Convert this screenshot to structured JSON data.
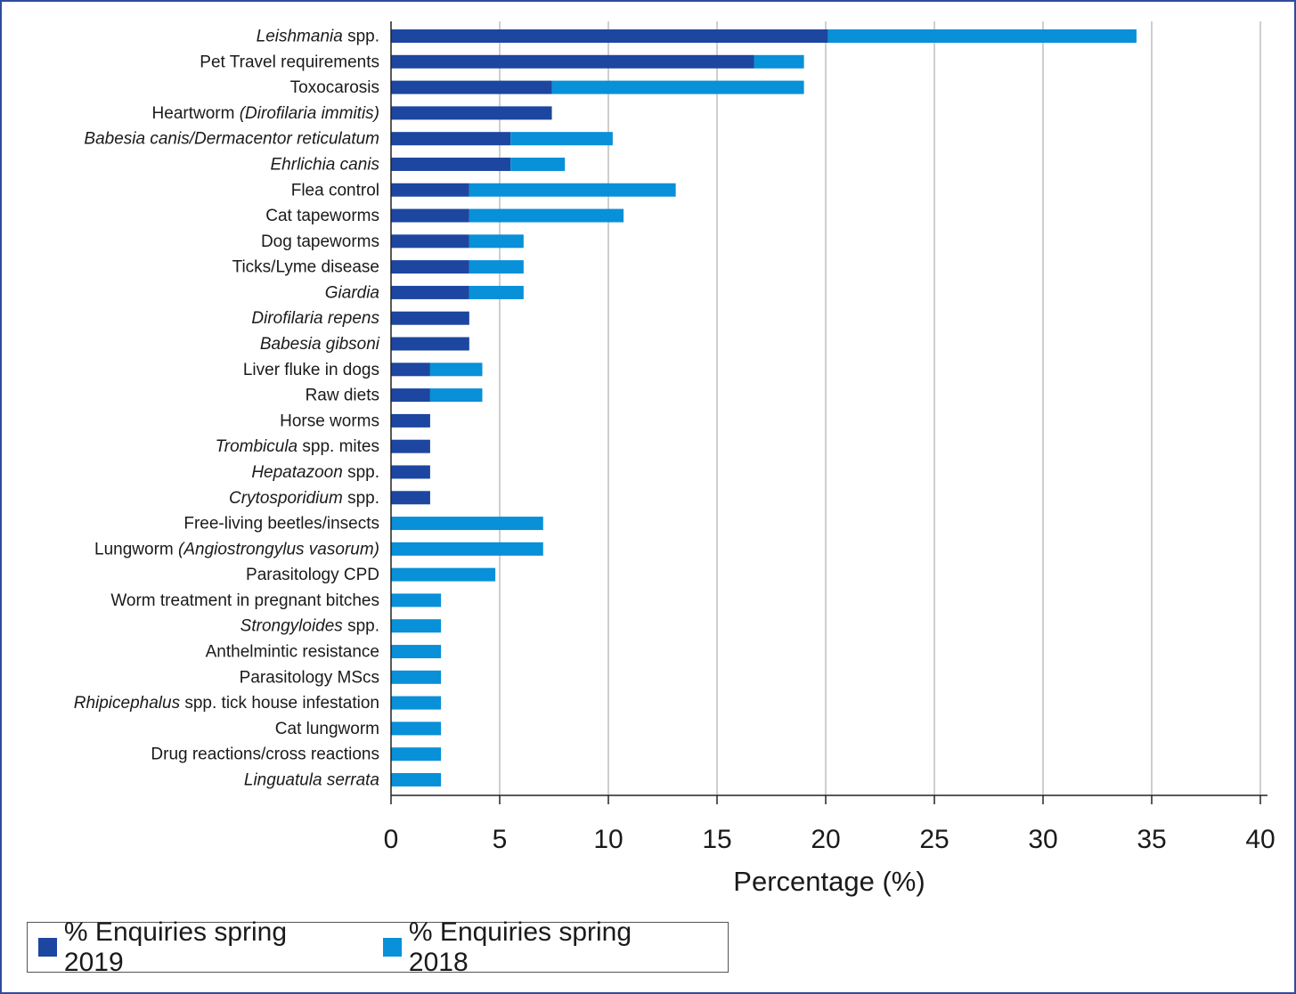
{
  "colors": {
    "series_2019": "#1c46a0",
    "series_2018": "#0890d8",
    "grid": "#cfcfcf",
    "axis": "#222222",
    "border": "#2f4d9e"
  },
  "chart_data": {
    "type": "bar",
    "orientation": "horizontal",
    "stacked": true,
    "xlabel": "Percentage (%)",
    "xlim": [
      0,
      40
    ],
    "xticks": [
      0,
      5,
      10,
      15,
      20,
      25,
      30,
      35,
      40
    ],
    "grid": "vertical",
    "legend_position": "bottom-left",
    "categories": [
      [
        {
          "t": "Leishmania",
          "i": true
        },
        {
          "t": " spp."
        }
      ],
      [
        {
          "t": "Pet Travel requirements"
        }
      ],
      [
        {
          "t": "Toxocarosis"
        }
      ],
      [
        {
          "t": "Heartworm "
        },
        {
          "t": "(Dirofilaria immitis)",
          "i": true
        }
      ],
      [
        {
          "t": "Babesia canis/Dermacentor reticulatum",
          "i": true
        }
      ],
      [
        {
          "t": "Ehrlichia canis",
          "i": true
        }
      ],
      [
        {
          "t": "Flea control"
        }
      ],
      [
        {
          "t": "Cat tapeworms"
        }
      ],
      [
        {
          "t": "Dog tapeworms"
        }
      ],
      [
        {
          "t": "Ticks/Lyme disease"
        }
      ],
      [
        {
          "t": "Giardia",
          "i": true
        }
      ],
      [
        {
          "t": "Dirofilaria repens",
          "i": true
        }
      ],
      [
        {
          "t": "Babesia gibsoni",
          "i": true
        }
      ],
      [
        {
          "t": "Liver fluke in dogs"
        }
      ],
      [
        {
          "t": "Raw diets"
        }
      ],
      [
        {
          "t": "Horse worms"
        }
      ],
      [
        {
          "t": "Trombicula",
          "i": true
        },
        {
          "t": " spp. mites"
        }
      ],
      [
        {
          "t": "Hepatazoon",
          "i": true
        },
        {
          "t": " spp."
        }
      ],
      [
        {
          "t": "Crytosporidium",
          "i": true
        },
        {
          "t": " spp."
        }
      ],
      [
        {
          "t": "Free-living beetles/insects"
        }
      ],
      [
        {
          "t": "Lungworm "
        },
        {
          "t": "(Angiostrongylus vasorum)",
          "i": true
        }
      ],
      [
        {
          "t": "Parasitology CPD"
        }
      ],
      [
        {
          "t": "Worm treatment in pregnant bitches"
        }
      ],
      [
        {
          "t": "Strongyloides",
          "i": true
        },
        {
          "t": " spp."
        }
      ],
      [
        {
          "t": "Anthelmintic resistance"
        }
      ],
      [
        {
          "t": "Parasitology MScs"
        }
      ],
      [
        {
          "t": "Rhipicephalus",
          "i": true
        },
        {
          "t": " spp. tick house infestation"
        }
      ],
      [
        {
          "t": "Cat lungworm"
        }
      ],
      [
        {
          "t": "Drug reactions/cross reactions"
        }
      ],
      [
        {
          "t": "Linguatula serrata",
          "i": true
        }
      ]
    ],
    "series": [
      {
        "name": "% Enquiries spring 2019",
        "values": [
          20.1,
          16.7,
          7.4,
          7.4,
          5.5,
          5.5,
          3.6,
          3.6,
          3.6,
          3.6,
          3.6,
          3.6,
          3.6,
          1.8,
          1.8,
          1.8,
          1.8,
          1.8,
          1.8,
          0,
          0,
          0,
          0,
          0,
          0,
          0,
          0,
          0,
          0,
          0
        ]
      },
      {
        "name": "% Enquiries spring 2018",
        "values": [
          14.2,
          2.3,
          11.6,
          0,
          4.7,
          2.5,
          9.5,
          7.1,
          2.5,
          2.5,
          2.5,
          0,
          0,
          2.4,
          2.4,
          0,
          0,
          0,
          0,
          7.0,
          7.0,
          4.8,
          2.3,
          2.3,
          2.3,
          2.3,
          2.3,
          2.3,
          2.3,
          2.3
        ]
      }
    ]
  }
}
